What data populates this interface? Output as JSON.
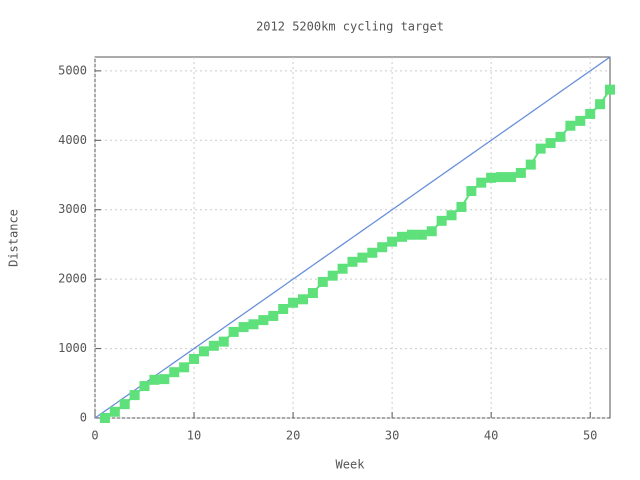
{
  "chart_data": {
    "type": "line",
    "title": "2012 5200km cycling target",
    "x_label": "Week",
    "y_label": "Distance",
    "x": [
      0,
      1,
      2,
      3,
      4,
      5,
      6,
      7,
      8,
      9,
      10,
      11,
      12,
      13,
      14,
      15,
      16,
      17,
      18,
      19,
      20,
      21,
      22,
      23,
      24,
      25,
      26,
      27,
      28,
      29,
      30,
      31,
      32,
      33,
      34,
      35,
      36,
      37,
      38,
      39,
      40,
      41,
      42,
      43,
      44,
      45,
      46,
      47,
      48,
      49,
      50,
      51,
      52
    ],
    "series": [
      {
        "color": "#6a8fdc",
        "markers": false,
        "values": [
          0,
          100,
          200,
          300,
          400,
          500,
          600,
          700,
          800,
          900,
          1000,
          1100,
          1200,
          1300,
          1400,
          1500,
          1600,
          1700,
          1800,
          1900,
          2000,
          2100,
          2200,
          2300,
          2400,
          2500,
          2600,
          2700,
          2800,
          2900,
          3000,
          3100,
          3200,
          3300,
          3400,
          3500,
          3600,
          3700,
          3800,
          3900,
          4000,
          4100,
          4200,
          4300,
          4400,
          4500,
          4600,
          4700,
          4800,
          4900,
          5000,
          5100,
          5200
        ]
      },
      {
        "color": "#5ee07a",
        "markers": true,
        "values": [
          null,
          0,
          90,
          200,
          330,
          460,
          550,
          560,
          660,
          730,
          850,
          960,
          1040,
          1100,
          1240,
          1310,
          1350,
          1410,
          1470,
          1570,
          1660,
          1710,
          1800,
          1960,
          2050,
          2150,
          2250,
          2310,
          2380,
          2460,
          2540,
          2610,
          2640,
          2640,
          2690,
          2840,
          2920,
          3040,
          3270,
          3390,
          3460,
          3470,
          3470,
          3530,
          3650,
          3880,
          3960,
          4050,
          4210,
          4280,
          4380,
          4520,
          4730
        ]
      }
    ],
    "xlim": [
      0,
      52
    ],
    "ylim": [
      0,
      5200
    ],
    "xticks": [
      0,
      10,
      20,
      30,
      40,
      50
    ],
    "yticks": [
      0,
      1000,
      2000,
      3000,
      4000,
      5000
    ],
    "grid": true
  }
}
